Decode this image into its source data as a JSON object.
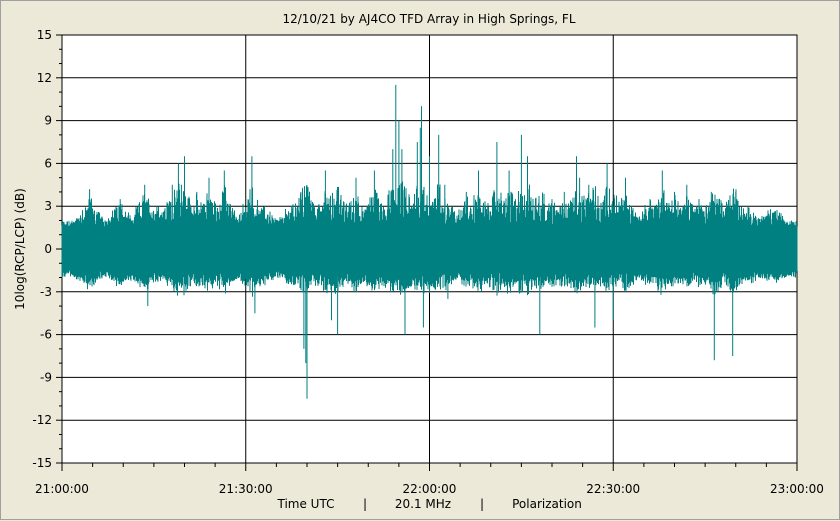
{
  "chart_data": {
    "type": "line",
    "title": "12/10/21  by  AJ4CO TFD Array  in  High Springs, FL",
    "ylabel": "10log(RCP/LCP) (dB)",
    "xlabel_parts": [
      "Time UTC",
      "|",
      "20.1 MHz",
      "|",
      "Polarization"
    ],
    "ylim": [
      -15,
      15
    ],
    "yticks": [
      -15,
      -12,
      -9,
      -6,
      -3,
      0,
      3,
      6,
      9,
      12,
      15
    ],
    "xlim_minutes": [
      0,
      120
    ],
    "xtick_labels": [
      "21:00:00",
      "21:30:00",
      "22:00:00",
      "22:30:00",
      "23:00:00"
    ],
    "grid": true,
    "series_color": "#008080",
    "series": [
      {
        "baseline_band_db": [
          -1.5,
          1.5
        ],
        "peaks": [
          {
            "t": 4.5,
            "v": 4.2
          },
          {
            "t": 9.5,
            "v": 3.5
          },
          {
            "t": 13.5,
            "v": 4.5
          },
          {
            "t": 14.0,
            "v": -4.0
          },
          {
            "t": 15.5,
            "v": 3.0
          },
          {
            "t": 18.0,
            "v": 4.5
          },
          {
            "t": 19.0,
            "v": 6.0
          },
          {
            "t": 19.5,
            "v": 4.5
          },
          {
            "t": 20.0,
            "v": 6.5
          },
          {
            "t": 22.0,
            "v": 4.0
          },
          {
            "t": 24.0,
            "v": 5.0
          },
          {
            "t": 26.5,
            "v": 5.5
          },
          {
            "t": 31.0,
            "v": 6.5
          },
          {
            "t": 31.5,
            "v": -4.5
          },
          {
            "t": 33.0,
            "v": 2.5
          },
          {
            "t": 37.5,
            "v": 3.0
          },
          {
            "t": 39.0,
            "v": 4.0
          },
          {
            "t": 38.0,
            "v": -2.5
          },
          {
            "t": 39.5,
            "v": -7.0
          },
          {
            "t": 39.8,
            "v": -8.0
          },
          {
            "t": 40.0,
            "v": -10.5
          },
          {
            "t": 43.0,
            "v": 5.5
          },
          {
            "t": 44.0,
            "v": -5.0
          },
          {
            "t": 44.5,
            "v": 3.0
          },
          {
            "t": 45.0,
            "v": -6.0
          },
          {
            "t": 48.0,
            "v": 5.0
          },
          {
            "t": 51.0,
            "v": 5.5
          },
          {
            "t": 54.0,
            "v": 7.0
          },
          {
            "t": 54.5,
            "v": 11.5
          },
          {
            "t": 55.0,
            "v": 9.0
          },
          {
            "t": 55.5,
            "v": 7.0
          },
          {
            "t": 56.0,
            "v": -6.0
          },
          {
            "t": 58.0,
            "v": 7.5
          },
          {
            "t": 58.5,
            "v": 8.5
          },
          {
            "t": 58.7,
            "v": 10.0
          },
          {
            "t": 59.0,
            "v": -5.5
          },
          {
            "t": 60.0,
            "v": 6.5
          },
          {
            "t": 61.5,
            "v": 8.0
          },
          {
            "t": 62.5,
            "v": 4.5
          },
          {
            "t": 63.0,
            "v": -3.5
          },
          {
            "t": 66.0,
            "v": 4.0
          },
          {
            "t": 68.0,
            "v": 5.5
          },
          {
            "t": 69.5,
            "v": 3.0
          },
          {
            "t": 71.0,
            "v": 7.5
          },
          {
            "t": 73.0,
            "v": 5.5
          },
          {
            "t": 75.0,
            "v": 8.0
          },
          {
            "t": 76.0,
            "v": 6.5
          },
          {
            "t": 78.0,
            "v": -6.0
          },
          {
            "t": 80.0,
            "v": 3.5
          },
          {
            "t": 82.0,
            "v": 4.0
          },
          {
            "t": 84.0,
            "v": 6.5
          },
          {
            "t": 84.5,
            "v": 5.0
          },
          {
            "t": 86.0,
            "v": 4.5
          },
          {
            "t": 87.0,
            "v": -5.5
          },
          {
            "t": 89.0,
            "v": 6.0
          },
          {
            "t": 90.0,
            "v": -5.0
          },
          {
            "t": 92.0,
            "v": 5.0
          },
          {
            "t": 96.0,
            "v": 3.5
          },
          {
            "t": 98.0,
            "v": 5.5
          },
          {
            "t": 100.0,
            "v": 4.0
          },
          {
            "t": 102.0,
            "v": 4.5
          },
          {
            "t": 104.0,
            "v": 3.5
          },
          {
            "t": 106.0,
            "v": 4.0
          },
          {
            "t": 106.5,
            "v": -7.8
          },
          {
            "t": 109.5,
            "v": -7.5
          },
          {
            "t": 110.0,
            "v": 4.0
          },
          {
            "t": 112.0,
            "v": 3.0
          },
          {
            "t": 116.0,
            "v": 2.5
          }
        ]
      }
    ]
  }
}
